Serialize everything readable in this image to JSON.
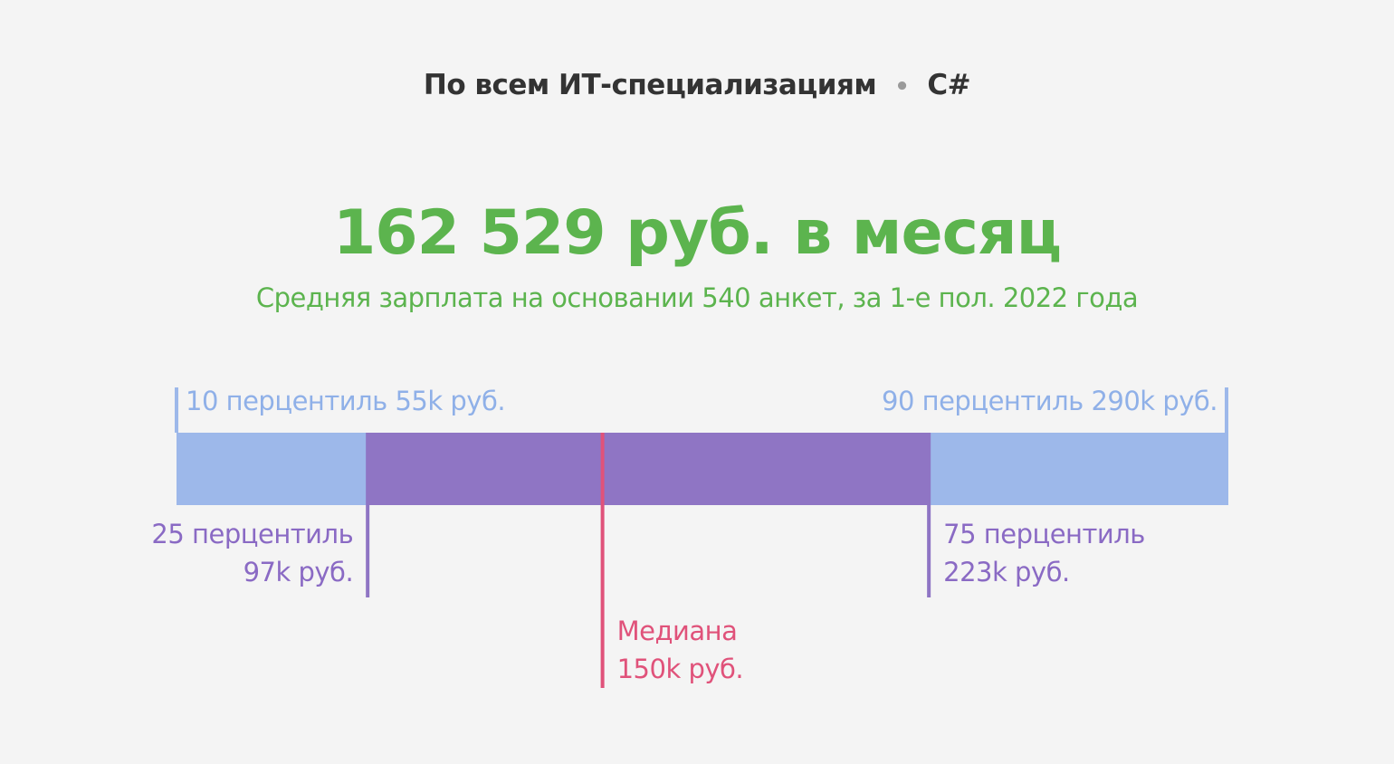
{
  "header": {
    "category": "По всем ИТ-специализациям",
    "separator": "•",
    "language": "C#"
  },
  "summary": {
    "average_salary": "162 529 руб. в месяц",
    "note": "Средняя зарплата на основании 540 анкет, за 1-е пол. 2022 года"
  },
  "colors": {
    "outer_range": "#9db8ea",
    "inner_range": "#8f75c4",
    "median": "#e0527a",
    "headline": "#5cb44e"
  },
  "chart_data": {
    "type": "bar",
    "orientation": "horizontal",
    "unit": "k руб.",
    "percentiles": [
      {
        "p": 10,
        "value": 55,
        "label_line1": "10 перцентиль 55k руб.",
        "label_line2": ""
      },
      {
        "p": 25,
        "value": 97,
        "label_line1": "25 перцентиль",
        "label_line2": "97k руб."
      },
      {
        "p": 50,
        "value": 150,
        "label_line1": "Медиана",
        "label_line2": "150k руб."
      },
      {
        "p": 75,
        "value": 223,
        "label_line1": "75 перцентиль",
        "label_line2": "223k руб."
      },
      {
        "p": 90,
        "value": 290,
        "label_line1": "90 перцентиль 290k руб.",
        "label_line2": ""
      }
    ]
  }
}
